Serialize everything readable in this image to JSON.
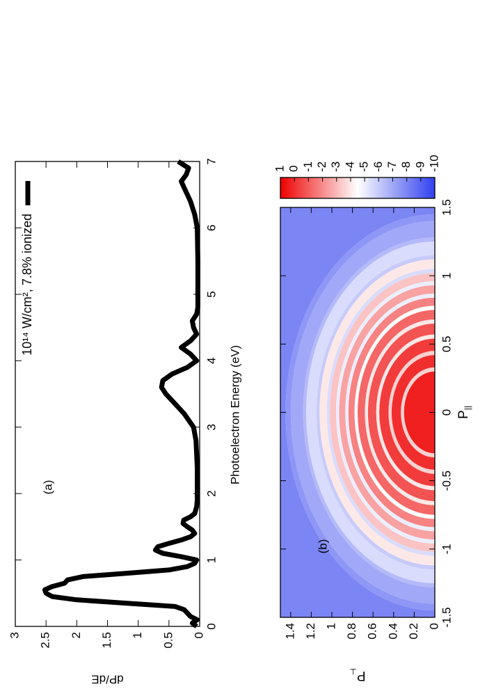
{
  "chart_data": [
    {
      "type": "line",
      "x_label": "Photoelectron Energy (eV)",
      "y_label": "dP/dE",
      "annotation": "(a)",
      "xlim": [
        0,
        7
      ],
      "xticks": [
        0,
        1,
        2,
        3,
        4,
        5,
        6,
        7
      ],
      "ylim": [
        0,
        3
      ],
      "yticks": [
        0,
        0.5,
        1,
        1.5,
        2,
        2.5,
        3
      ],
      "x": [
        0,
        0.05,
        0.1,
        0.15,
        0.2,
        0.25,
        0.3,
        0.35,
        0.4,
        0.45,
        0.5,
        0.55,
        0.6,
        0.65,
        0.7,
        0.75,
        0.8,
        0.85,
        0.9,
        0.95,
        1.0,
        1.05,
        1.1,
        1.15,
        1.2,
        1.25,
        1.3,
        1.35,
        1.4,
        1.45,
        1.5,
        1.55,
        1.6,
        1.65,
        1.7,
        1.8,
        1.9,
        2.0,
        2.2,
        2.4,
        2.6,
        2.8,
        3.0,
        3.2,
        3.4,
        3.5,
        3.6,
        3.7,
        3.8,
        3.9,
        4.0,
        4.1,
        4.2,
        4.3,
        4.4,
        4.5,
        4.6,
        4.7,
        4.8,
        5.0,
        5.5,
        6.0,
        6.2,
        6.4,
        6.6,
        6.7,
        6.8,
        6.9,
        7.0
      ],
      "series": [
        {
          "name": "10¹⁴ W/cm², 7.8% ionized",
          "color": "#000000",
          "values": [
            0.05,
            0.12,
            0.04,
            0.15,
            0.2,
            0.25,
            0.4,
            1.2,
            2.0,
            2.4,
            2.5,
            2.52,
            2.4,
            2.2,
            2.15,
            1.9,
            1.2,
            0.5,
            0.2,
            0.08,
            0.05,
            0.3,
            0.6,
            0.72,
            0.68,
            0.5,
            0.3,
            0.15,
            0.08,
            0.12,
            0.2,
            0.27,
            0.26,
            0.15,
            0.08,
            0.05,
            0.04,
            0.04,
            0.04,
            0.04,
            0.05,
            0.06,
            0.1,
            0.25,
            0.45,
            0.55,
            0.62,
            0.6,
            0.45,
            0.2,
            0.05,
            0.15,
            0.3,
            0.15,
            0.05,
            0.1,
            0.12,
            0.05,
            0.03,
            0.03,
            0.03,
            0.04,
            0.08,
            0.15,
            0.25,
            0.3,
            0.22,
            0.18,
            0.35
          ]
        }
      ],
      "legend": "upper right"
    },
    {
      "type": "heatmap",
      "x_label": "P",
      "x_label_sub": "||",
      "y_label": "P",
      "y_label_sub": "⊥",
      "annotation": "(b)",
      "xlim": [
        -1.5,
        1.5
      ],
      "xticks": [
        -1.5,
        -1,
        -0.5,
        0,
        0.5,
        1,
        1.5
      ],
      "ylim": [
        0,
        1.5
      ],
      "yticks": [
        0,
        0.2,
        0.4,
        0.6,
        0.8,
        1,
        1.2,
        1.4
      ],
      "clim": [
        -10,
        1
      ],
      "cticks": [
        1,
        0,
        -1,
        -2,
        -3,
        -4,
        -5,
        -6,
        -7,
        -8,
        -9,
        -10
      ],
      "colormap": [
        {
          "value": -10,
          "color": "#3040ee"
        },
        {
          "value": -4.5,
          "color": "#ffffff"
        },
        {
          "value": 1,
          "color": "#ee0000"
        }
      ],
      "radial": {
        "p": [
          0.3,
          0.33,
          0.42,
          0.45,
          0.54,
          0.57,
          0.65,
          0.68,
          0.75,
          0.78,
          0.84,
          0.87,
          0.93,
          0.96,
          1.02,
          1.05,
          1.12,
          1.15,
          1.25,
          1.28,
          1.4,
          1.45,
          2.2
        ],
        "values": [
          0.3,
          -3.5,
          0,
          -3.5,
          -0.3,
          -4,
          -0.8,
          -4,
          -1.2,
          -4.5,
          -1.8,
          -5,
          -2.5,
          -5,
          -3.2,
          -5.5,
          -4,
          -6,
          -5.5,
          -6.5,
          -7,
          -7.5,
          -8
        ]
      }
    }
  ]
}
